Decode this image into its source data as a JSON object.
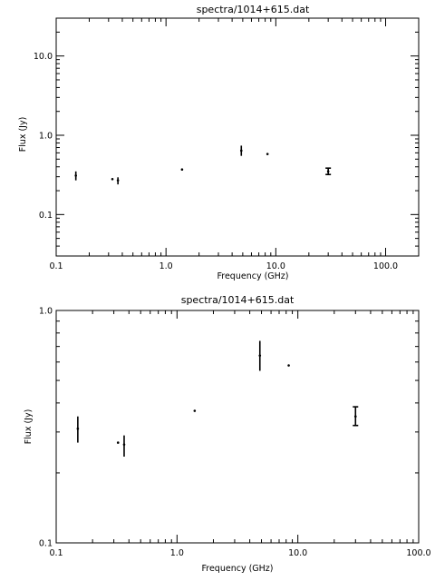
{
  "chart_data": [
    {
      "type": "scatter",
      "title": "spectra/1014+615.dat",
      "xlabel": "Frequency (GHz)",
      "ylabel": "Flux (Jy)",
      "xscale": "log",
      "yscale": "log",
      "xlim": [
        0.1,
        200
      ],
      "ylim": [
        0.03,
        30
      ],
      "x_ticklabels": [
        "0.1",
        "1.0",
        "10.0",
        "100.0"
      ],
      "y_ticklabels": [
        "0.1",
        "1.0",
        "10.0"
      ],
      "grid": false,
      "points": [
        {
          "x": 0.151,
          "y": 0.31,
          "ylo": 0.27,
          "yhi": 0.35
        },
        {
          "x": 0.325,
          "y": 0.28,
          "ylo": 0.278,
          "yhi": 0.282
        },
        {
          "x": 0.365,
          "y": 0.27,
          "ylo": 0.24,
          "yhi": 0.295
        },
        {
          "x": 1.4,
          "y": 0.37,
          "ylo": 0.365,
          "yhi": 0.375
        },
        {
          "x": 4.85,
          "y": 0.64,
          "ylo": 0.55,
          "yhi": 0.74
        },
        {
          "x": 8.4,
          "y": 0.58,
          "ylo": 0.575,
          "yhi": 0.585
        },
        {
          "x": 30.0,
          "y": 0.35,
          "ylo": 0.32,
          "yhi": 0.385,
          "capped": true
        }
      ]
    },
    {
      "type": "scatter",
      "title": "spectra/1014+615.dat",
      "xlabel": "Frequency (GHz)",
      "ylabel": "Flux (Jy)",
      "xscale": "log",
      "yscale": "log",
      "xlim": [
        0.1,
        100
      ],
      "ylim": [
        0.1,
        1.0
      ],
      "x_ticklabels": [
        "0.1",
        "1.0",
        "10.0",
        "100.0"
      ],
      "y_ticklabels": [
        "0.1",
        "1.0"
      ],
      "grid": false,
      "points": [
        {
          "x": 0.151,
          "y": 0.31,
          "ylo": 0.27,
          "yhi": 0.35
        },
        {
          "x": 0.325,
          "y": 0.27,
          "ylo": 0.268,
          "yhi": 0.272
        },
        {
          "x": 0.365,
          "y": 0.265,
          "ylo": 0.235,
          "yhi": 0.29
        },
        {
          "x": 1.4,
          "y": 0.37,
          "ylo": 0.367,
          "yhi": 0.373
        },
        {
          "x": 4.85,
          "y": 0.64,
          "ylo": 0.55,
          "yhi": 0.74
        },
        {
          "x": 8.4,
          "y": 0.58,
          "ylo": 0.577,
          "yhi": 0.583
        },
        {
          "x": 30.0,
          "y": 0.35,
          "ylo": 0.32,
          "yhi": 0.385,
          "capped": true
        }
      ]
    }
  ]
}
